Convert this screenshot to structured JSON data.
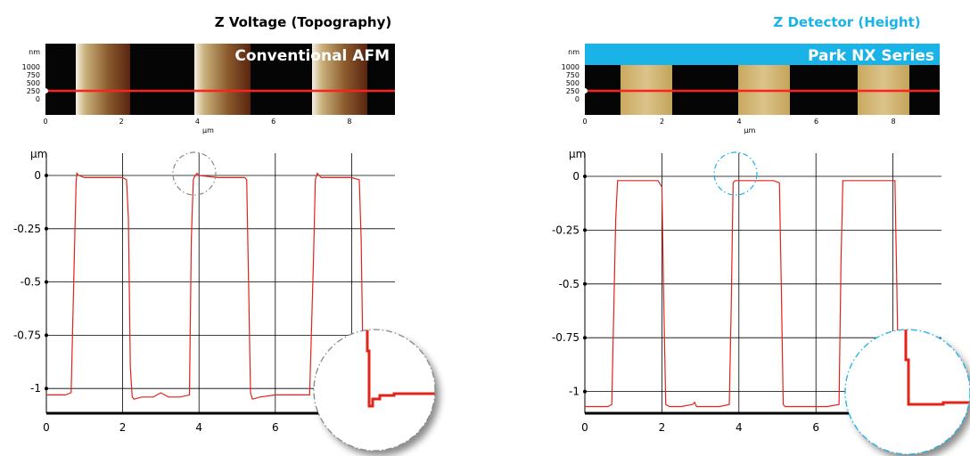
{
  "colors": {
    "trace": "#e2231a",
    "accent_blue": "#1ab3e8",
    "scan_line": "#ff2020"
  },
  "chart_data": [
    {
      "type": "line",
      "title": "Z Voltage (Topography)",
      "title_color": "#000000",
      "image_label": "Conventional AFM",
      "image_unit_y": "nm",
      "image_unit_x": "µm",
      "image_yticks": [
        "1000",
        "750",
        "500",
        "250",
        "0"
      ],
      "image_xticks": [
        "0",
        "2",
        "4",
        "6",
        "8"
      ],
      "ylabel": "µm",
      "xticks": [
        "0",
        "2",
        "4",
        "6"
      ],
      "yticks": [
        "0",
        "-0.25",
        "-0.5",
        "-0.75",
        "-1"
      ],
      "xlim": [
        0,
        8.6
      ],
      "ylim": [
        -1.12,
        0.05
      ],
      "grid": true,
      "highlight": {
        "color": "#888888",
        "x": 3.9,
        "y": -0.01
      },
      "zoom_inset": true,
      "series": [
        {
          "x": [
            0,
            0.5,
            0.65,
            0.75,
            0.78,
            0.8,
            0.85,
            1.0,
            1.5,
            2.0,
            2.1,
            2.15,
            2.2,
            2.25,
            2.3,
            2.5,
            2.8,
            3.0,
            3.2,
            3.5,
            3.75,
            3.8,
            3.85,
            3.9,
            3.95,
            4.0,
            4.5,
            5.0,
            5.2,
            5.25,
            5.3,
            5.35,
            5.4,
            5.6,
            6.0,
            6.5,
            6.9,
            7.0,
            7.05,
            7.1,
            7.15,
            7.2,
            7.5,
            8.0,
            8.2,
            8.25,
            8.3,
            8.33
          ],
          "y": [
            -1.03,
            -1.03,
            -1.02,
            -0.25,
            -0.03,
            0.01,
            0.0,
            -0.01,
            -0.01,
            -0.01,
            -0.02,
            -0.2,
            -0.9,
            -1.04,
            -1.05,
            -1.04,
            -1.04,
            -1.02,
            -1.04,
            -1.04,
            -1.03,
            -0.3,
            -0.02,
            0.0,
            0.01,
            0.0,
            -0.01,
            -0.01,
            -0.01,
            -0.02,
            -0.5,
            -1.02,
            -1.05,
            -1.04,
            -1.03,
            -1.03,
            -1.03,
            -0.4,
            -0.02,
            0.01,
            0.0,
            -0.01,
            -0.01,
            -0.01,
            -0.02,
            -0.3,
            -0.9,
            -1.05
          ]
        }
      ]
    },
    {
      "type": "line",
      "title": "Z Detector (Height)",
      "title_color": "#1ab3e8",
      "image_label": "Park NX Series",
      "image_unit_y": "nm",
      "image_unit_x": "µm",
      "image_yticks": [
        "1000",
        "750",
        "500",
        "250",
        "0"
      ],
      "image_xticks": [
        "0",
        "2",
        "4",
        "6",
        "8"
      ],
      "ylabel": "µm",
      "xticks": [
        "0",
        "2",
        "4",
        "6"
      ],
      "yticks": [
        "0",
        "-0.25",
        "-0.5",
        "-0.75",
        "-1"
      ],
      "xlim": [
        0,
        8.6
      ],
      "ylim": [
        -1.12,
        0.05
      ],
      "grid": true,
      "highlight": {
        "color": "#1ab3e8",
        "x": 3.9,
        "y": -0.02
      },
      "zoom_inset": true,
      "series": [
        {
          "x": [
            0,
            0.6,
            0.7,
            0.8,
            0.85,
            0.9,
            1.2,
            1.6,
            1.9,
            2.0,
            2.05,
            2.1,
            2.2,
            2.5,
            2.8,
            2.85,
            2.9,
            3.2,
            3.5,
            3.75,
            3.8,
            3.85,
            3.9,
            4.1,
            4.5,
            4.9,
            5.05,
            5.1,
            5.15,
            5.2,
            5.3,
            5.8,
            6.3,
            6.6,
            6.65,
            6.7,
            6.8,
            7.2,
            7.6,
            8.05,
            8.1,
            8.15,
            8.2,
            8.6
          ],
          "y": [
            -1.07,
            -1.07,
            -1.06,
            -0.2,
            -0.02,
            -0.02,
            -0.02,
            -0.02,
            -0.02,
            -0.05,
            -0.6,
            -1.06,
            -1.07,
            -1.07,
            -1.06,
            -1.05,
            -1.07,
            -1.07,
            -1.07,
            -1.06,
            -0.6,
            -0.03,
            -0.02,
            -0.02,
            -0.02,
            -0.02,
            -0.03,
            -0.5,
            -1.06,
            -1.07,
            -1.07,
            -1.07,
            -1.07,
            -1.06,
            -0.4,
            -0.02,
            -0.02,
            -0.02,
            -0.02,
            -0.02,
            -0.5,
            -1.06,
            -1.07,
            -1.07
          ]
        }
      ]
    }
  ]
}
